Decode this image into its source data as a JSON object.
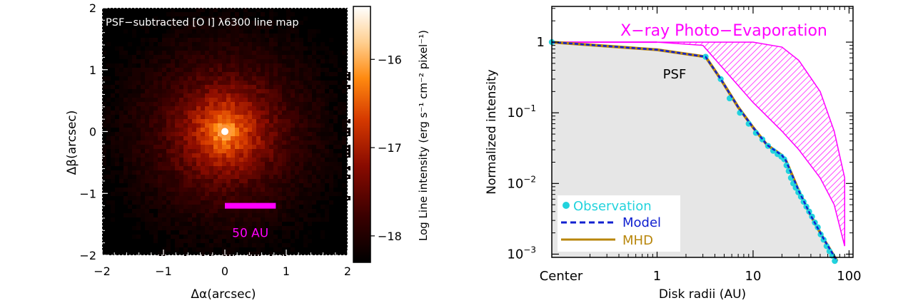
{
  "chart_data": [
    {
      "type": "heatmap",
      "title": "PSF−subtracted [O I] λ6300 line map",
      "xlabel": "Δα(arcsec)",
      "ylabel": "Δβ(arcsec)",
      "xlim": [
        -2,
        2
      ],
      "ylim": [
        -2,
        2
      ],
      "xticks": [
        "−2",
        "−1",
        "0",
        "1",
        "2"
      ],
      "yticks": [
        "−2",
        "−1",
        "0",
        "1",
        "2"
      ],
      "colorbar": {
        "label": "Log Line intensity (erg s⁻¹ cm⁻² pixel⁻¹)",
        "range": [
          -18.3,
          -15.4
        ],
        "ticks": [
          "−16",
          "−17",
          "−18"
        ],
        "colormap": [
          "#000000",
          "#5a0000",
          "#c22000",
          "#ff7a00",
          "#ffd9a0",
          "#ffffff"
        ]
      },
      "source_peak": {
        "x": 0,
        "y": 0,
        "log_intensity": -15.4
      },
      "scalebar": {
        "label": "50 AU",
        "x_start": 0.0,
        "x_end": 0.83,
        "y": -1.2,
        "color": "#ff00ff"
      }
    },
    {
      "type": "line",
      "xscale": "log",
      "yscale": "log",
      "xlabel": "Disk radii (AU)",
      "ylabel": "Normalized intensity",
      "xlim": [
        0.08,
        110
      ],
      "ylim": [
        0.0009,
        3.2
      ],
      "xtick_labels": [
        "Center",
        "1",
        "10",
        "100"
      ],
      "ytick_labels": [
        {
          "value": 1,
          "mant": "1",
          "exp": ""
        },
        {
          "value": 0.1,
          "mant": "10",
          "exp": "−1"
        },
        {
          "value": 0.01,
          "mant": "10",
          "exp": "−2"
        },
        {
          "value": 0.001,
          "mant": "10",
          "exp": "−3"
        }
      ],
      "psf_label": "PSF",
      "xray_label": "X−ray Photo−Evaporation",
      "psf": {
        "x": [
          0.08,
          0.1,
          0.3,
          1,
          2,
          3.2,
          4.5,
          7,
          10,
          12,
          15,
          20,
          22,
          25,
          30,
          40,
          55,
          75
        ],
        "y": [
          1.0,
          0.97,
          0.88,
          0.76,
          0.67,
          0.6,
          0.3,
          0.12,
          0.065,
          0.045,
          0.032,
          0.024,
          0.02,
          0.013,
          0.0075,
          0.0033,
          0.0015,
          0.00075
        ]
      },
      "xray_band": {
        "x": [
          1,
          3,
          10,
          20,
          30,
          50,
          70,
          90
        ],
        "upper": [
          1.0,
          1.0,
          1.0,
          0.85,
          0.55,
          0.2,
          0.055,
          0.012
        ],
        "lower": [
          1.0,
          0.9,
          0.14,
          0.055,
          0.03,
          0.012,
          0.005,
          0.0013
        ]
      },
      "series": [
        {
          "name": "Observation",
          "style": "points",
          "color": "#22d3dd",
          "x": [
            0.08,
            3.2,
            4.6,
            5.7,
            7.3,
            9.0,
            10.7,
            12.5,
            14.3,
            16.2,
            18.0,
            19.7,
            21.1,
            22.3,
            23.5,
            24.8,
            26.2,
            27.8,
            29.6,
            31.5,
            33.6,
            35.9,
            38.4,
            41.1,
            44.0,
            47.2,
            50.6,
            54.3,
            58.3,
            62.5,
            66.8,
            71.0
          ],
          "y": [
            1.0,
            0.62,
            0.3,
            0.16,
            0.1,
            0.07,
            0.052,
            0.042,
            0.034,
            0.029,
            0.026,
            0.024,
            0.022,
            0.018,
            0.015,
            0.012,
            0.01,
            0.0087,
            0.0075,
            0.0065,
            0.0055,
            0.0047,
            0.004,
            0.0034,
            0.0028,
            0.0024,
            0.0019,
            0.0016,
            0.0013,
            0.0011,
            0.00095,
            0.0008
          ]
        },
        {
          "name": "Model",
          "style": "dashed",
          "color": "#1020d0",
          "x": [
            0.08,
            1,
            3.2,
            4.6,
            7,
            10,
            14,
            20,
            22,
            25,
            30,
            40,
            55,
            75
          ],
          "y": [
            1.0,
            0.78,
            0.62,
            0.3,
            0.12,
            0.062,
            0.035,
            0.025,
            0.021,
            0.014,
            0.0078,
            0.0035,
            0.0016,
            0.0008
          ]
        },
        {
          "name": "MHD",
          "style": "solid",
          "color": "#b8860b",
          "x": [
            0.08,
            1,
            3.2,
            4.6,
            7,
            10,
            14,
            20,
            22,
            25,
            30,
            40,
            55,
            75
          ],
          "y": [
            1.0,
            0.78,
            0.62,
            0.3,
            0.12,
            0.062,
            0.035,
            0.025,
            0.021,
            0.014,
            0.0078,
            0.0035,
            0.0016,
            0.0008
          ]
        }
      ],
      "legend": "bottom-left",
      "colors": {
        "xray": "#ff00ff",
        "psf_fill": "#e6e6e6"
      }
    }
  ]
}
